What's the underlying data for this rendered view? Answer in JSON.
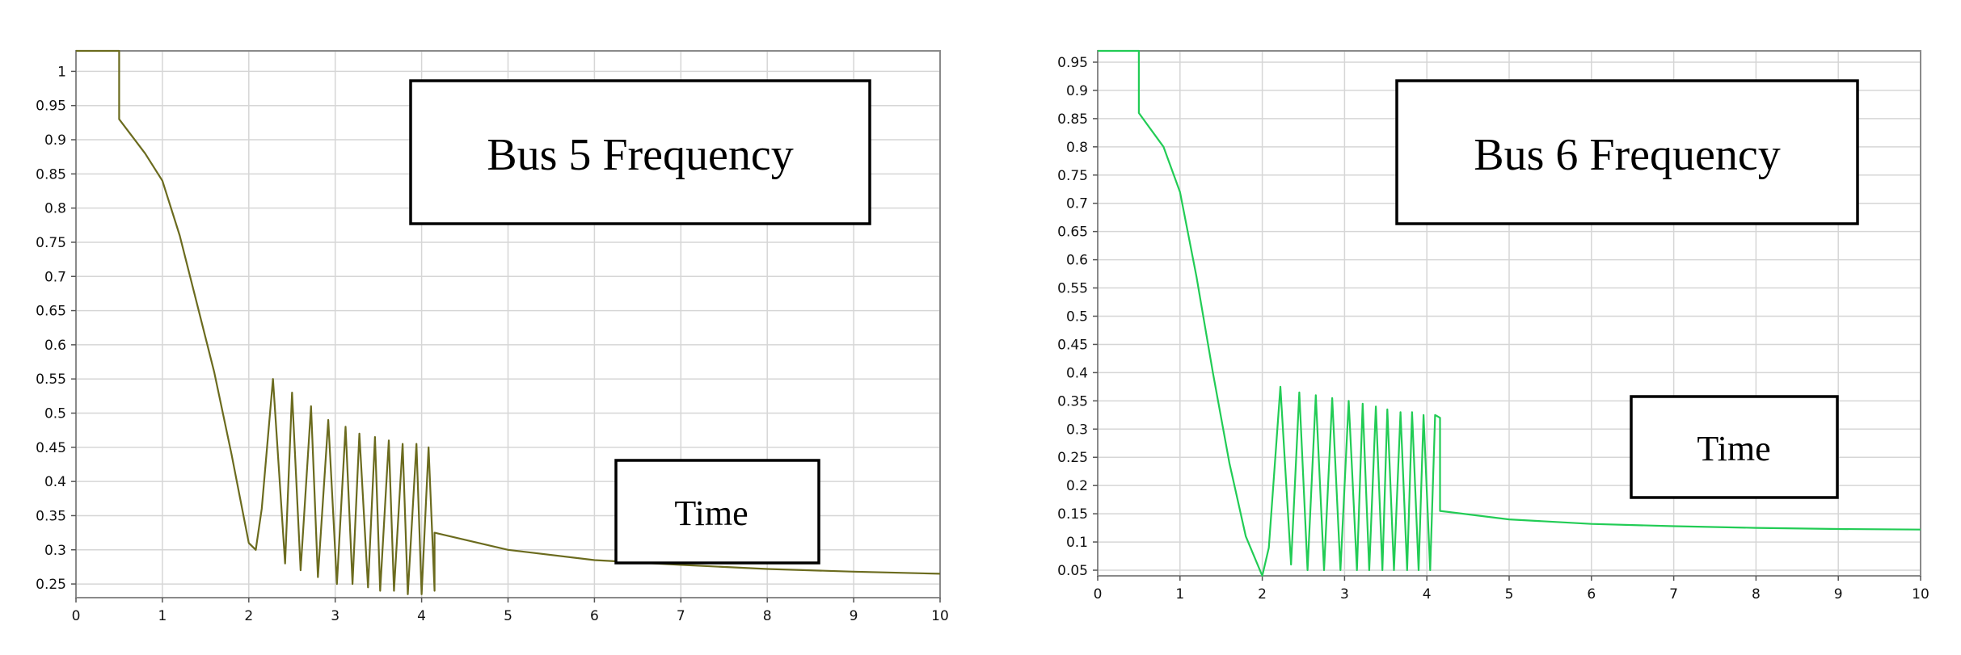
{
  "chart_data": [
    {
      "type": "line",
      "title": "Bus 5 Frequency",
      "xlabel": "Time",
      "ylabel": "",
      "xlim": [
        0,
        10
      ],
      "ylim": [
        0.23,
        1.03
      ],
      "xticks": [
        "0",
        "1",
        "2",
        "3",
        "4",
        "5",
        "6",
        "7",
        "8",
        "9",
        "10"
      ],
      "yticks": [
        "0.25",
        "0.3",
        "0.35",
        "0.4",
        "0.45",
        "0.5",
        "0.55",
        "0.6",
        "0.65",
        "0.7",
        "0.75",
        "0.8",
        "0.85",
        "0.9",
        "0.95",
        "1"
      ],
      "grid": true,
      "line_color": "#6b6b1e",
      "series": [
        {
          "name": "",
          "x": [
            0,
            0.5,
            0.5,
            0.8,
            1.0,
            1.2,
            1.4,
            1.6,
            1.8,
            2.0,
            2.08,
            2.15,
            2.28,
            2.42,
            2.5,
            2.6,
            2.72,
            2.8,
            2.92,
            3.02,
            3.12,
            3.2,
            3.28,
            3.38,
            3.46,
            3.52,
            3.62,
            3.68,
            3.78,
            3.84,
            3.94,
            4.0,
            4.08,
            4.15,
            4.15,
            5.0,
            6.0,
            7.0,
            8.0,
            9.0,
            10.0
          ],
          "y": [
            1.03,
            1.03,
            0.93,
            0.88,
            0.84,
            0.76,
            0.66,
            0.56,
            0.44,
            0.31,
            0.3,
            0.36,
            0.55,
            0.28,
            0.53,
            0.27,
            0.51,
            0.26,
            0.49,
            0.25,
            0.48,
            0.25,
            0.47,
            0.245,
            0.465,
            0.24,
            0.46,
            0.24,
            0.455,
            0.235,
            0.455,
            0.235,
            0.45,
            0.24,
            0.325,
            0.3,
            0.285,
            0.278,
            0.272,
            0.268,
            0.265
          ]
        }
      ]
    },
    {
      "type": "line",
      "title": "Bus 6 Frequency",
      "xlabel": "Time",
      "ylabel": "",
      "xlim": [
        0,
        10
      ],
      "ylim": [
        0.04,
        0.97
      ],
      "xticks": [
        "0",
        "1",
        "2",
        "3",
        "4",
        "5",
        "6",
        "7",
        "8",
        "9",
        "10"
      ],
      "yticks": [
        "0.05",
        "0.1",
        "0.15",
        "0.2",
        "0.25",
        "0.3",
        "0.35",
        "0.4",
        "0.45",
        "0.5",
        "0.55",
        "0.6",
        "0.65",
        "0.7",
        "0.75",
        "0.8",
        "0.85",
        "0.9",
        "0.95"
      ],
      "grid": true,
      "line_color": "#22cc55",
      "series": [
        {
          "name": "",
          "x": [
            0,
            0.5,
            0.5,
            0.8,
            1.0,
            1.2,
            1.4,
            1.6,
            1.8,
            2.0,
            2.08,
            2.22,
            2.35,
            2.45,
            2.55,
            2.65,
            2.75,
            2.85,
            2.95,
            3.05,
            3.15,
            3.22,
            3.3,
            3.38,
            3.46,
            3.52,
            3.6,
            3.68,
            3.76,
            3.82,
            3.9,
            3.96,
            4.04,
            4.1,
            4.16,
            4.16,
            5.0,
            6.0,
            7.0,
            8.0,
            9.0,
            10.0
          ],
          "y": [
            0.97,
            0.97,
            0.86,
            0.8,
            0.72,
            0.57,
            0.4,
            0.24,
            0.11,
            0.04,
            0.09,
            0.375,
            0.06,
            0.365,
            0.05,
            0.36,
            0.05,
            0.355,
            0.05,
            0.35,
            0.05,
            0.345,
            0.05,
            0.34,
            0.05,
            0.335,
            0.05,
            0.33,
            0.05,
            0.33,
            0.05,
            0.325,
            0.05,
            0.325,
            0.32,
            0.155,
            0.14,
            0.132,
            0.128,
            0.125,
            0.123,
            0.122
          ]
        }
      ]
    }
  ]
}
